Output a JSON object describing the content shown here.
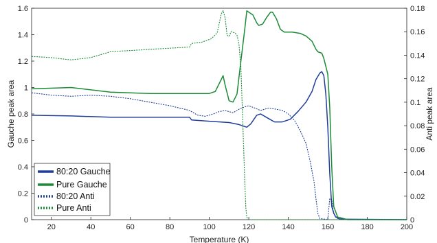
{
  "chart_data": {
    "type": "line",
    "xlabel": "Temperature (K)",
    "ylabel_left": "Gauche peak area",
    "ylabel_right": "Anti peak area",
    "xlim": [
      10,
      200
    ],
    "ylim_left": [
      0,
      1.6
    ],
    "ylim_right": [
      0,
      0.18
    ],
    "x_ticks": [
      "20",
      "40",
      "60",
      "80",
      "100",
      "120",
      "140",
      "160",
      "180",
      "200"
    ],
    "y_left_ticks": [
      "0",
      "0.2",
      "0.4",
      "0.6",
      "0.8",
      "1",
      "1.2",
      "1.4",
      "1.6"
    ],
    "y_right_ticks": [
      "0",
      "0.02",
      "0.04",
      "0.06",
      "0.08",
      "0.1",
      "0.12",
      "0.14",
      "0.16",
      "0.18"
    ],
    "legend_position": "bottom-left",
    "series": [
      {
        "name": "80:20 Gauche",
        "axis": "left",
        "style": "solid",
        "color": "#1f3d99",
        "points": [
          [
            10,
            0.79
          ],
          [
            30,
            0.785
          ],
          [
            50,
            0.775
          ],
          [
            70,
            0.775
          ],
          [
            90,
            0.775
          ],
          [
            91,
            0.755
          ],
          [
            100,
            0.745
          ],
          [
            110,
            0.735
          ],
          [
            115,
            0.72
          ],
          [
            119,
            0.7
          ],
          [
            121,
            0.725
          ],
          [
            124,
            0.79
          ],
          [
            126,
            0.8
          ],
          [
            130,
            0.765
          ],
          [
            133,
            0.74
          ],
          [
            137,
            0.74
          ],
          [
            141,
            0.76
          ],
          [
            145,
            0.82
          ],
          [
            149,
            0.89
          ],
          [
            152,
            0.97
          ],
          [
            154,
            1.06
          ],
          [
            156,
            1.11
          ],
          [
            157,
            1.12
          ],
          [
            158,
            1.09
          ],
          [
            159,
            0.95
          ],
          [
            160,
            0.7
          ],
          [
            161,
            0.35
          ],
          [
            162,
            0.1
          ],
          [
            163,
            0.05
          ],
          [
            164,
            0.02
          ],
          [
            166,
            0.005
          ],
          [
            170,
            0.003
          ],
          [
            200,
            0.0
          ]
        ]
      },
      {
        "name": "Pure Gauche",
        "axis": "left",
        "style": "solid",
        "color": "#1a8c35",
        "points": [
          [
            10,
            0.99
          ],
          [
            30,
            1.0
          ],
          [
            50,
            0.965
          ],
          [
            70,
            0.955
          ],
          [
            90,
            0.955
          ],
          [
            100,
            0.955
          ],
          [
            103,
            0.97
          ],
          [
            106,
            1.06
          ],
          [
            107,
            1.09
          ],
          [
            108,
            1.02
          ],
          [
            110,
            0.9
          ],
          [
            112,
            0.89
          ],
          [
            114,
            0.95
          ],
          [
            116,
            1.2
          ],
          [
            118,
            1.45
          ],
          [
            119,
            1.58
          ],
          [
            120,
            1.57
          ],
          [
            122,
            1.55
          ],
          [
            124,
            1.49
          ],
          [
            125,
            1.47
          ],
          [
            127,
            1.48
          ],
          [
            129,
            1.53
          ],
          [
            131,
            1.57
          ],
          [
            132,
            1.57
          ],
          [
            134,
            1.52
          ],
          [
            136,
            1.44
          ],
          [
            138,
            1.42
          ],
          [
            142,
            1.42
          ],
          [
            146,
            1.41
          ],
          [
            149,
            1.39
          ],
          [
            152,
            1.35
          ],
          [
            154,
            1.29
          ],
          [
            155,
            1.27
          ],
          [
            157,
            1.26
          ],
          [
            158,
            1.22
          ],
          [
            160,
            1.1
          ],
          [
            161,
            0.85
          ],
          [
            162,
            0.4
          ],
          [
            163,
            0.1
          ],
          [
            165,
            0.02
          ],
          [
            170,
            0.0
          ],
          [
            200,
            0.0
          ]
        ]
      },
      {
        "name": "80:20 Anti",
        "axis": "right",
        "style": "dotted",
        "color": "#1f3d99",
        "points": [
          [
            10,
            0.108
          ],
          [
            20,
            0.106
          ],
          [
            30,
            0.105
          ],
          [
            40,
            0.106
          ],
          [
            50,
            0.105
          ],
          [
            60,
            0.103
          ],
          [
            70,
            0.1
          ],
          [
            80,
            0.097
          ],
          [
            90,
            0.093
          ],
          [
            94,
            0.089
          ],
          [
            98,
            0.088
          ],
          [
            102,
            0.09
          ],
          [
            105,
            0.092
          ],
          [
            108,
            0.093
          ],
          [
            112,
            0.091
          ],
          [
            115,
            0.094
          ],
          [
            118,
            0.096
          ],
          [
            120,
            0.097
          ],
          [
            123,
            0.095
          ],
          [
            126,
            0.093
          ],
          [
            130,
            0.095
          ],
          [
            134,
            0.094
          ],
          [
            137,
            0.093
          ],
          [
            140,
            0.09
          ],
          [
            143,
            0.085
          ],
          [
            146,
            0.076
          ],
          [
            149,
            0.065
          ],
          [
            151,
            0.05
          ],
          [
            153,
            0.033
          ],
          [
            154,
            0.018
          ],
          [
            155,
            0.005
          ],
          [
            156,
            0.001
          ],
          [
            160,
            0.0
          ],
          [
            161,
            0.018
          ],
          [
            162,
            0.017
          ],
          [
            163,
            0.005
          ],
          [
            165,
            0.001
          ],
          [
            170,
            0.0
          ],
          [
            200,
            0.0
          ]
        ]
      },
      {
        "name": "Pure Anti",
        "axis": "right",
        "style": "dotted",
        "color": "#1a8c35",
        "points": [
          [
            10,
            0.139
          ],
          [
            20,
            0.138
          ],
          [
            30,
            0.136
          ],
          [
            40,
            0.138
          ],
          [
            50,
            0.143
          ],
          [
            60,
            0.144
          ],
          [
            70,
            0.145
          ],
          [
            80,
            0.146
          ],
          [
            90,
            0.147
          ],
          [
            91,
            0.15
          ],
          [
            96,
            0.151
          ],
          [
            101,
            0.154
          ],
          [
            104,
            0.159
          ],
          [
            106,
            0.175
          ],
          [
            107,
            0.178
          ],
          [
            108,
            0.172
          ],
          [
            109,
            0.157
          ],
          [
            110,
            0.156
          ],
          [
            111,
            0.16
          ],
          [
            113,
            0.159
          ],
          [
            114,
            0.157
          ],
          [
            115,
            0.15
          ],
          [
            116,
            0.13
          ],
          [
            117,
            0.08
          ],
          [
            118,
            0.03
          ],
          [
            118.5,
            0.01
          ],
          [
            119,
            0.002
          ],
          [
            120,
            0.0
          ],
          [
            200,
            0.0
          ]
        ]
      }
    ]
  }
}
